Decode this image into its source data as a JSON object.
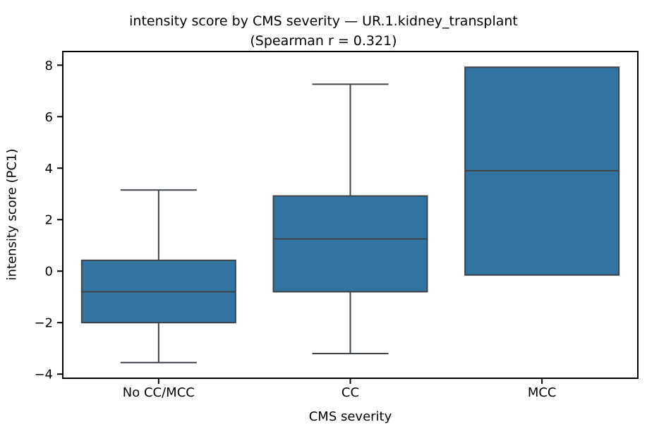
{
  "chart_data": {
    "type": "box",
    "title": "intensity score by CMS severity — UR.1.kidney_transplant\n(Spearman r = 0.321)",
    "title_line1": "intensity score by CMS severity — UR.1.kidney_transplant",
    "title_line2": "(Spearman r = 0.321)",
    "xlabel": "CMS severity",
    "ylabel": "intensity score (PC1)",
    "categories": [
      "No CC/MCC",
      "CC",
      "MCC"
    ],
    "series": [
      {
        "name": "No CC/MCC",
        "whisker_low": -3.55,
        "q1": -2.0,
        "median": -0.8,
        "q3": 0.42,
        "whisker_high": 3.15
      },
      {
        "name": "CC",
        "whisker_low": -3.2,
        "q1": -0.8,
        "median": 1.25,
        "q3": 2.92,
        "whisker_high": 7.26
      },
      {
        "name": "MCC",
        "whisker_low": -0.15,
        "q1": -0.15,
        "median": 3.9,
        "q3": 7.92,
        "whisker_high": 7.92
      }
    ],
    "ylim": [
      -4.16,
      8.53
    ],
    "yticks": [
      -4,
      -2,
      0,
      2,
      4,
      6,
      8
    ],
    "ytick_labels": [
      "−4",
      "−2",
      "0",
      "2",
      "4",
      "6",
      "8"
    ],
    "grid": false,
    "legend": "none",
    "colors": {
      "box_fill": "#3274A1",
      "box_edge": "#3D4349",
      "spine": "#000000",
      "text": "#000000",
      "background": "#FFFFFF"
    }
  }
}
